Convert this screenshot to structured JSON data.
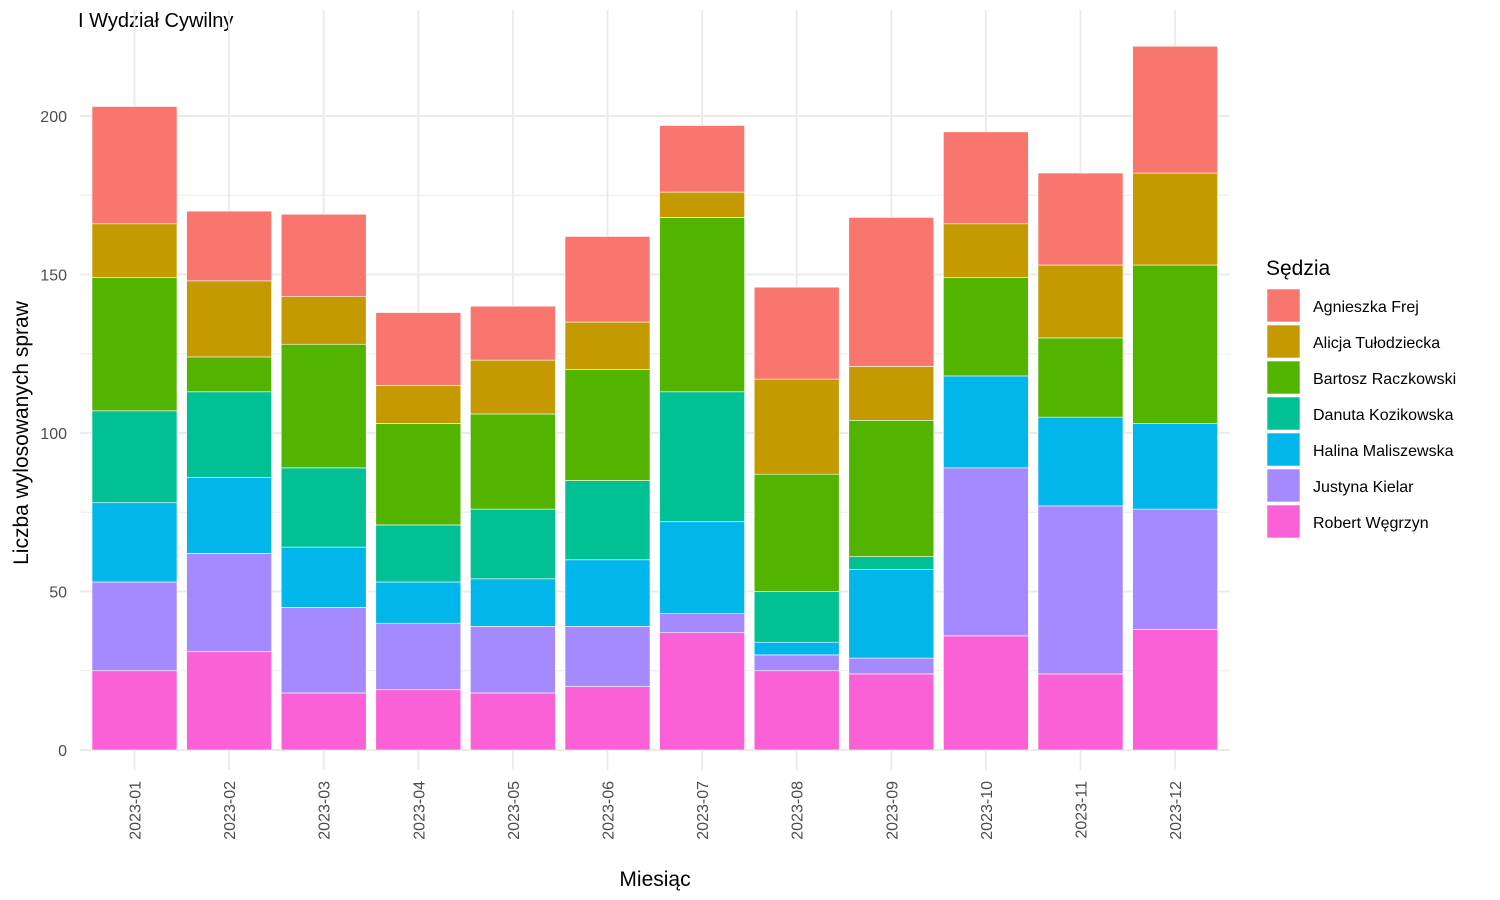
{
  "chart_data": {
    "type": "bar",
    "stacked": true,
    "title": "I Wydział Cywilny",
    "xlabel": "Miesiąc",
    "ylabel": "Liczba wylosowanych spraw",
    "ylim": [
      0,
      225
    ],
    "yticks": [
      0,
      50,
      100,
      150,
      200
    ],
    "grid": true,
    "legend_title": "Sędzia",
    "legend_position": "right",
    "categories": [
      "2023-01",
      "2023-02",
      "2023-03",
      "2023-04",
      "2023-05",
      "2023-06",
      "2023-07",
      "2023-08",
      "2023-09",
      "2023-10",
      "2023-11",
      "2023-12"
    ],
    "series": [
      {
        "name": "Agnieszka Frej",
        "color": "#F8766D",
        "values": [
          37,
          22,
          26,
          23,
          17,
          27,
          21,
          29,
          47,
          29,
          29,
          40
        ]
      },
      {
        "name": "Alicja Tułodziecka",
        "color": "#C49A00",
        "values": [
          17,
          24,
          15,
          12,
          17,
          15,
          8,
          30,
          17,
          17,
          23,
          29
        ]
      },
      {
        "name": "Bartosz Raczkowski",
        "color": "#53B400",
        "values": [
          42,
          11,
          39,
          32,
          30,
          35,
          55,
          37,
          43,
          31,
          25,
          50
        ]
      },
      {
        "name": "Danuta Kozikowska",
        "color": "#00C094",
        "values": [
          29,
          27,
          25,
          18,
          22,
          25,
          41,
          16,
          4,
          0,
          0,
          0
        ]
      },
      {
        "name": "Halina Maliszewska",
        "color": "#00B6EB",
        "values": [
          25,
          24,
          19,
          13,
          15,
          21,
          29,
          4,
          28,
          29,
          28,
          27
        ]
      },
      {
        "name": "Justyna Kielar",
        "color": "#A58AFF",
        "values": [
          28,
          31,
          27,
          21,
          21,
          19,
          6,
          5,
          5,
          53,
          53,
          38
        ]
      },
      {
        "name": "Robert Węgrzyn",
        "color": "#FB61D7",
        "values": [
          25,
          31,
          18,
          19,
          18,
          20,
          37,
          25,
          24,
          36,
          24,
          38
        ]
      }
    ]
  }
}
